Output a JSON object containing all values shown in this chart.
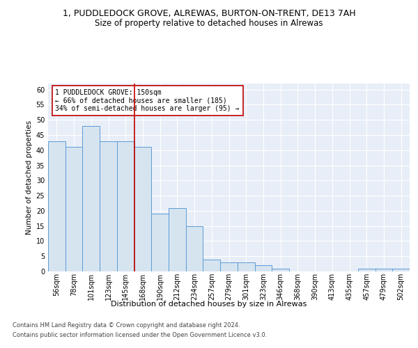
{
  "title_line1": "1, PUDDLEDOCK GROVE, ALREWAS, BURTON-ON-TRENT, DE13 7AH",
  "title_line2": "Size of property relative to detached houses in Alrewas",
  "xlabel": "Distribution of detached houses by size in Alrewas",
  "ylabel": "Number of detached properties",
  "categories": [
    "56sqm",
    "78sqm",
    "101sqm",
    "123sqm",
    "145sqm",
    "168sqm",
    "190sqm",
    "212sqm",
    "234sqm",
    "257sqm",
    "279sqm",
    "301sqm",
    "323sqm",
    "346sqm",
    "368sqm",
    "390sqm",
    "413sqm",
    "435sqm",
    "457sqm",
    "479sqm",
    "502sqm"
  ],
  "values": [
    43,
    41,
    48,
    43,
    43,
    41,
    19,
    21,
    15,
    4,
    3,
    3,
    2,
    1,
    0,
    0,
    0,
    0,
    1,
    1,
    1
  ],
  "bar_fill": "#d6e4f0",
  "bar_edge": "#5b9bd5",
  "ref_line_color": "#c00000",
  "annotation_text": "1 PUDDLEDOCK GROVE: 150sqm\n← 66% of detached houses are smaller (185)\n34% of semi-detached houses are larger (95) →",
  "annotation_box_color": "#c00000",
  "ylim": [
    0,
    62
  ],
  "yticks": [
    0,
    5,
    10,
    15,
    20,
    25,
    30,
    35,
    40,
    45,
    50,
    55,
    60
  ],
  "footnote1": "Contains HM Land Registry data © Crown copyright and database right 2024.",
  "footnote2": "Contains public sector information licensed under the Open Government Licence v3.0.",
  "bg_color": "#ffffff",
  "plot_bg": "#e8eef7",
  "grid_color": "#ffffff",
  "title1_fontsize": 9,
  "title2_fontsize": 8.5,
  "ylabel_fontsize": 7.5,
  "xlabel_fontsize": 8,
  "tick_fontsize": 7,
  "footnote_fontsize": 6
}
